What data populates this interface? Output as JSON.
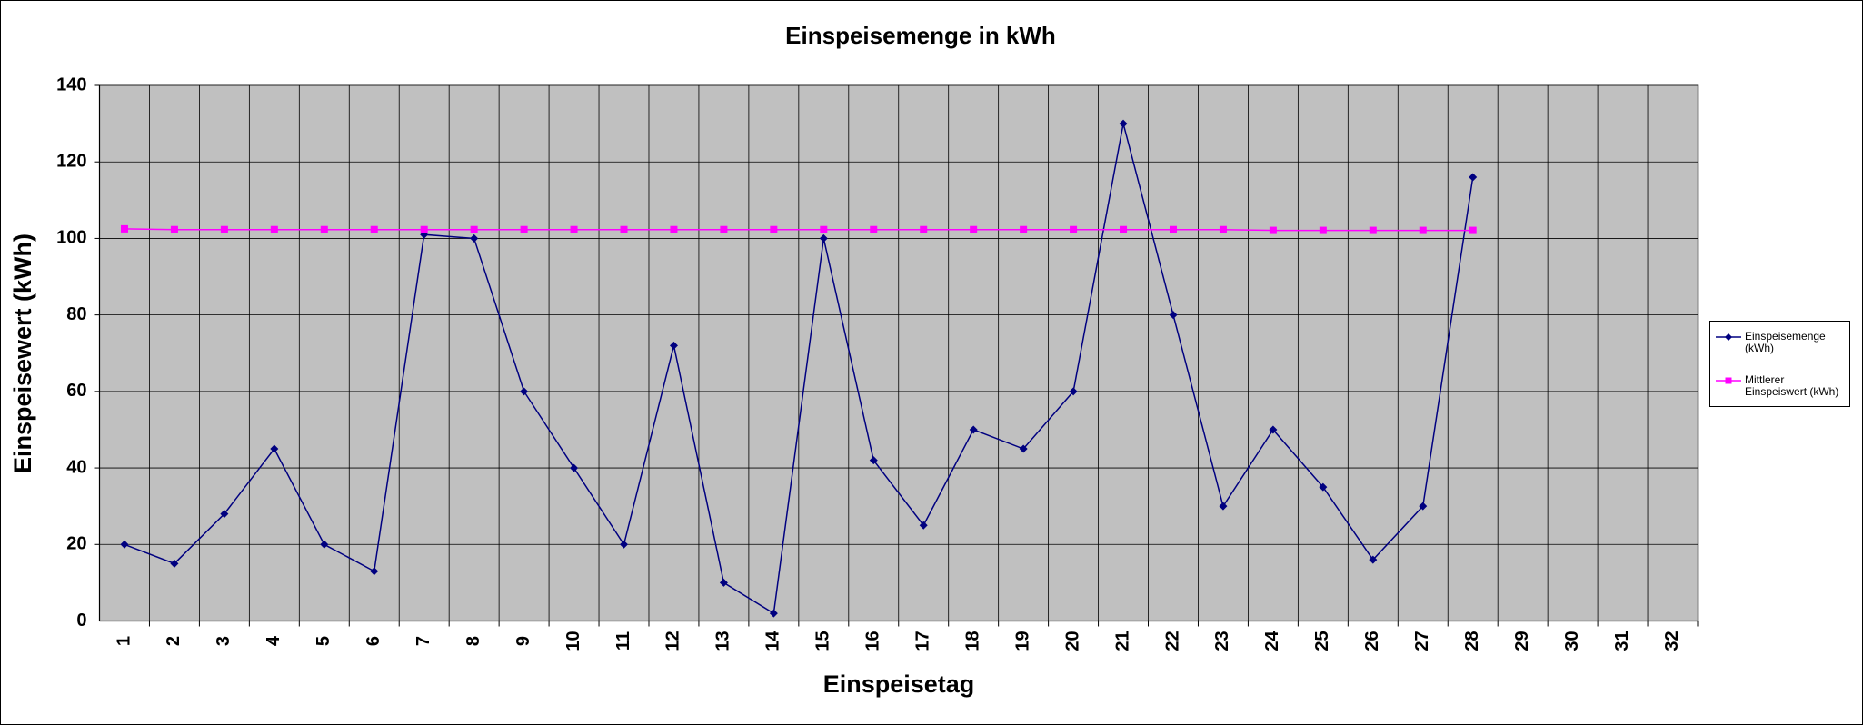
{
  "chart_data": {
    "type": "line",
    "title": "Einspeisemenge in kWh",
    "x_label": "Einspeisetag",
    "y_label": "Einspeisewert  (kWh)",
    "categories": [
      "1",
      "2",
      "3",
      "4",
      "5",
      "6",
      "7",
      "8",
      "9",
      "10",
      "11",
      "12",
      "13",
      "14",
      "15",
      "16",
      "17",
      "18",
      "19",
      "20",
      "21",
      "22",
      "23",
      "24",
      "25",
      "26",
      "27",
      "28",
      "29",
      "30",
      "31",
      "32"
    ],
    "series": [
      {
        "name": "Einspeisemenge (kWh)",
        "color": "#000080",
        "marker": "diamond",
        "values": [
          20,
          15,
          28,
          45,
          20,
          13,
          101,
          100,
          60,
          40,
          20,
          72,
          10,
          2,
          100,
          42,
          25,
          50,
          45,
          60,
          130,
          80,
          30,
          50,
          35,
          16,
          30,
          116,
          null,
          null,
          null,
          null
        ]
      },
      {
        "name": "Mittlerer Einspeiswert (kWh)",
        "color": "#ff00ff",
        "marker": "square",
        "values": [
          102.5,
          102.3,
          102.3,
          102.3,
          102.3,
          102.3,
          102.3,
          102.3,
          102.3,
          102.3,
          102.3,
          102.3,
          102.3,
          102.3,
          102.3,
          102.3,
          102.3,
          102.3,
          102.3,
          102.3,
          102.3,
          102.3,
          102.3,
          102.1,
          102.1,
          102.1,
          102.1,
          102.1,
          null,
          null,
          null,
          null
        ]
      }
    ],
    "ylim": [
      0,
      140
    ],
    "yticks": [
      0,
      20,
      40,
      60,
      80,
      100,
      120,
      140
    ],
    "grid": true,
    "legend": "right",
    "plot_background": "#c0c0c0"
  }
}
